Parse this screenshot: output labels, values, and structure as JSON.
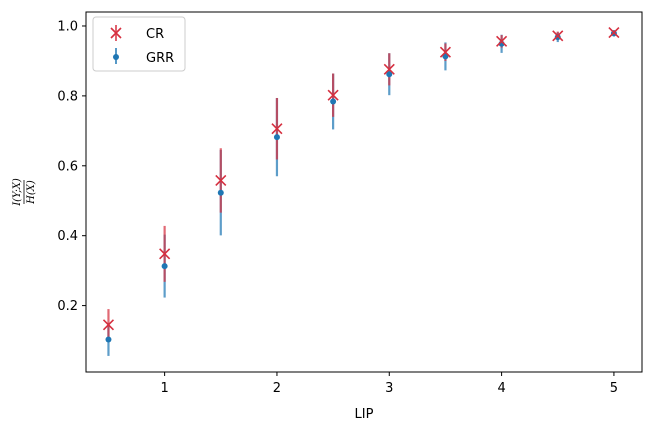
{
  "chart_data": {
    "type": "scatter",
    "xlabel": "LIP",
    "ylabel": {
      "numerator": "I(Y;X)",
      "denominator": "H(X)"
    },
    "xlim": [
      0.3,
      5.25
    ],
    "ylim": [
      0.01,
      1.04
    ],
    "x_ticks": [
      1,
      2,
      3,
      4,
      5
    ],
    "y_ticks": [
      0.2,
      0.4,
      0.6,
      0.8,
      1.0
    ],
    "x_tick_labels": [
      "1",
      "2",
      "3",
      "4",
      "5"
    ],
    "y_tick_labels": [
      "0.2",
      "0.4",
      "0.6",
      "0.8",
      "1.0"
    ],
    "grid": false,
    "legend_placement": "top-left",
    "series": [
      {
        "name": "CR",
        "marker": "x",
        "color": "#d62f3f",
        "x": [
          0.5,
          1.0,
          1.5,
          2.0,
          2.5,
          3.0,
          3.5,
          4.0,
          4.5,
          5.0
        ],
        "y": [
          0.145,
          0.348,
          0.558,
          0.706,
          0.802,
          0.876,
          0.925,
          0.956,
          0.972,
          0.981
        ],
        "err": [
          0.045,
          0.08,
          0.092,
          0.088,
          0.062,
          0.046,
          0.025,
          0.018,
          0.012,
          0.007
        ]
      },
      {
        "name": "GRR",
        "marker": "o",
        "color": "#1f77b4",
        "x": [
          0.5,
          1.0,
          1.5,
          2.0,
          2.5,
          3.0,
          3.5,
          4.0,
          4.5,
          5.0
        ],
        "y": [
          0.103,
          0.313,
          0.523,
          0.682,
          0.784,
          0.862,
          0.913,
          0.949,
          0.968,
          0.979
        ],
        "err": [
          0.047,
          0.09,
          0.122,
          0.112,
          0.08,
          0.06,
          0.04,
          0.026,
          0.014,
          0.009
        ]
      }
    ]
  }
}
